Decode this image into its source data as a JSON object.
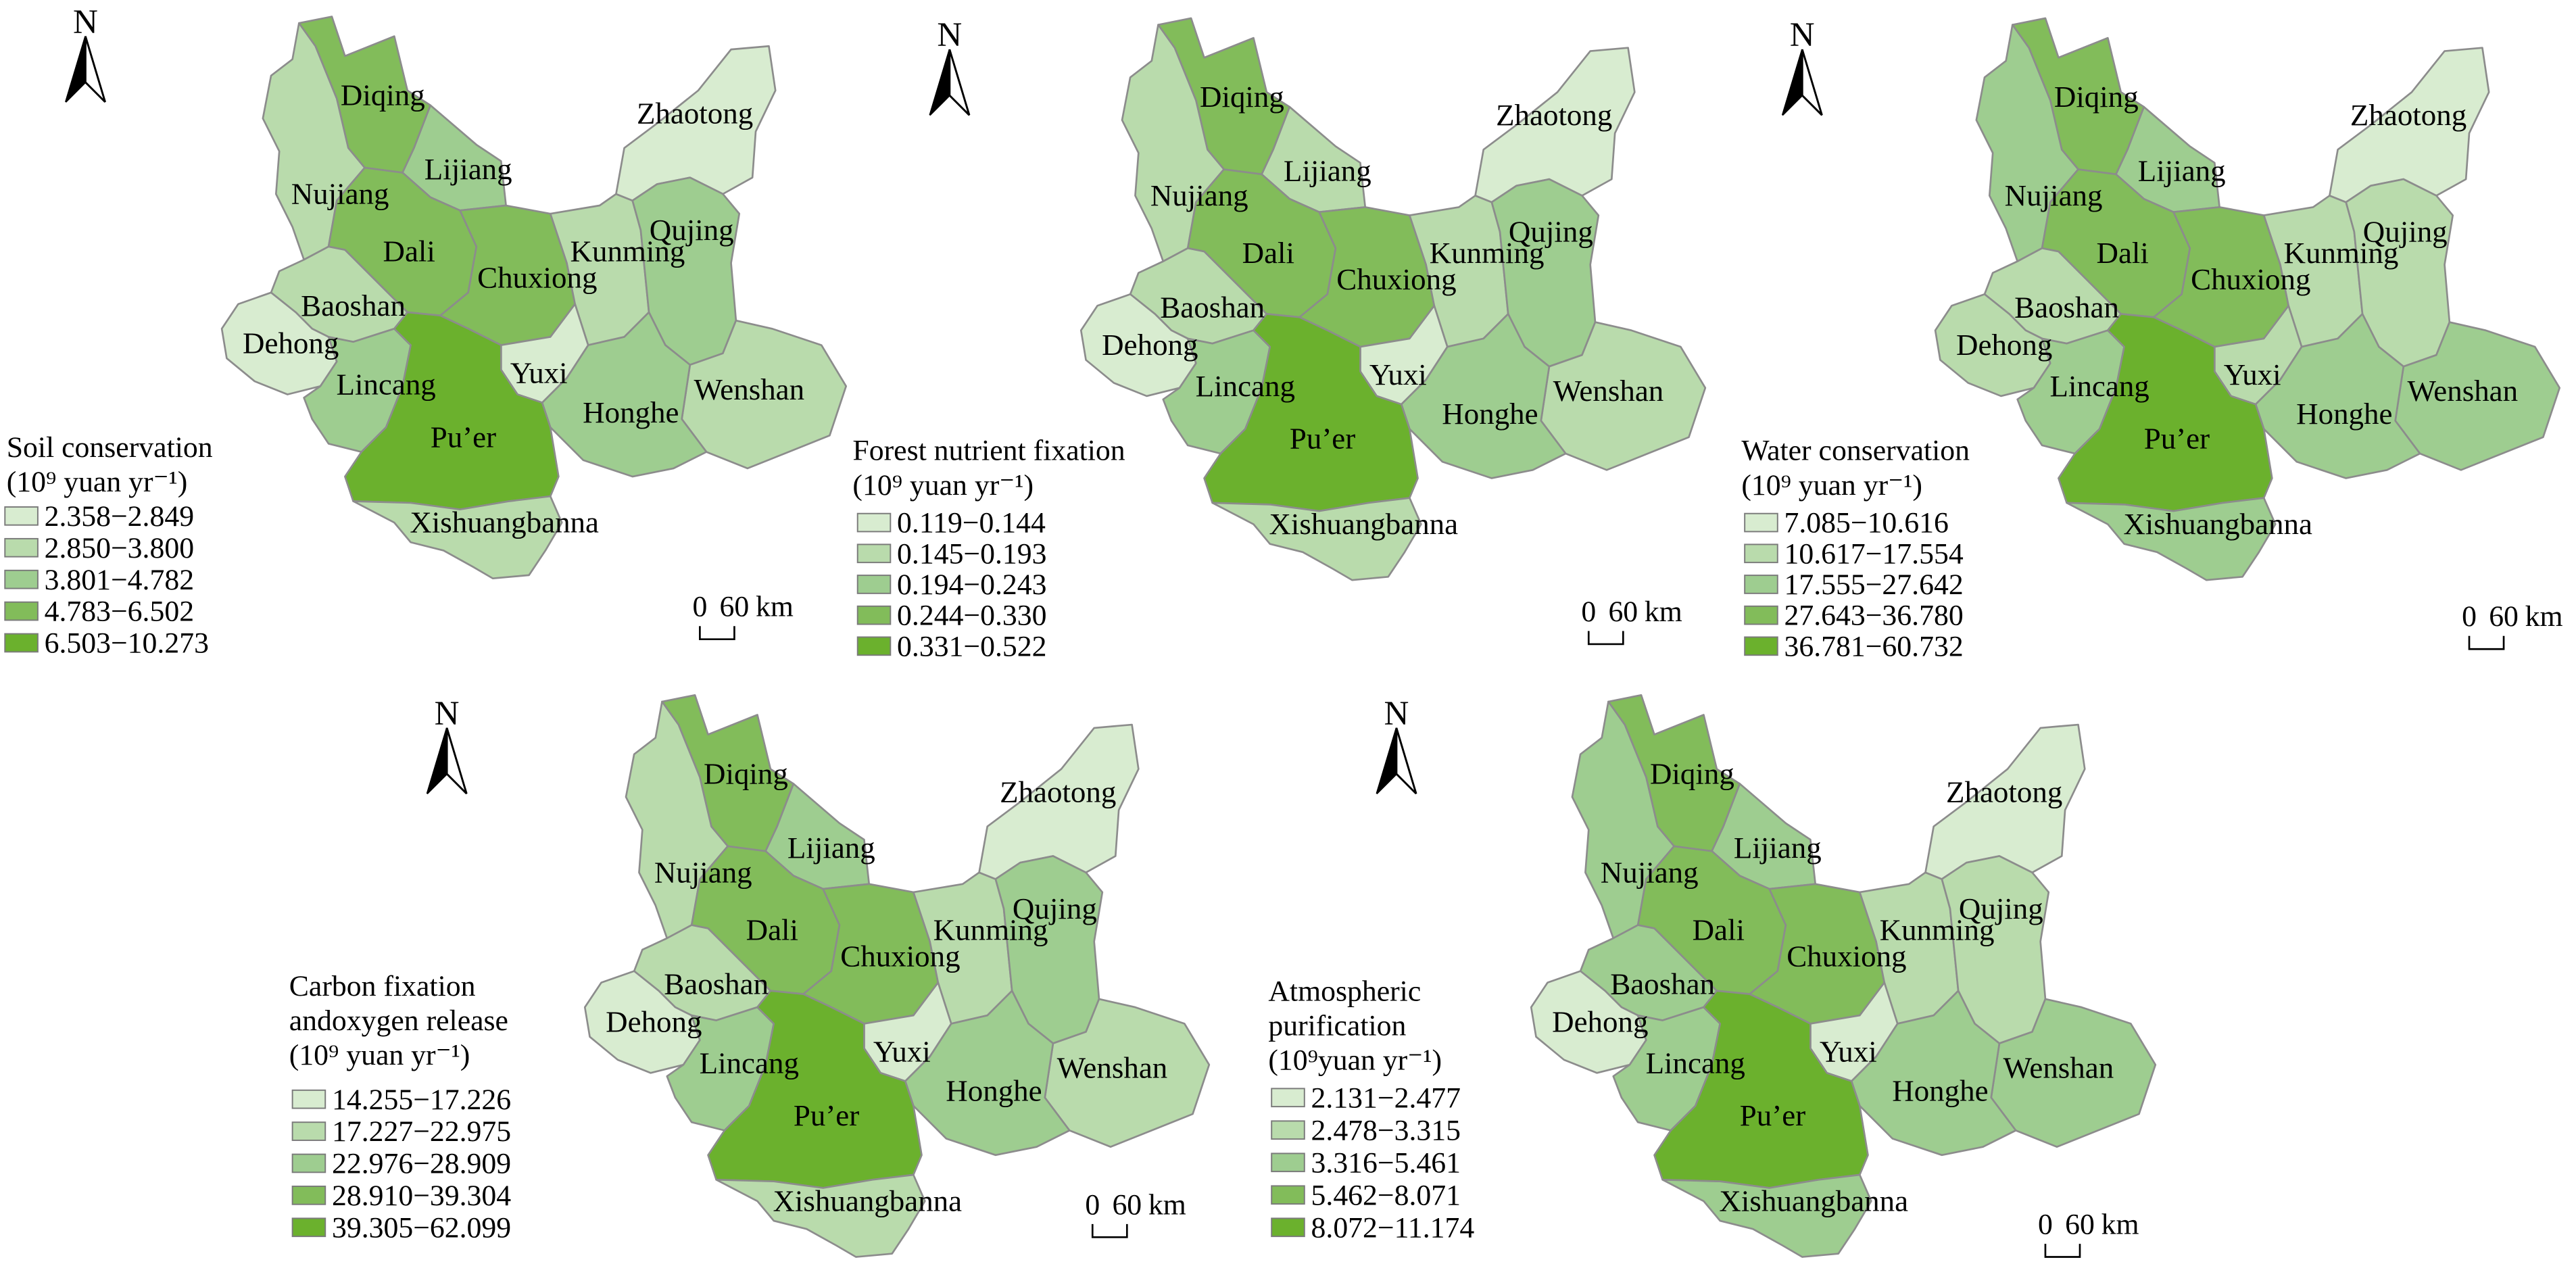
{
  "north_label": "N",
  "scale_bar": {
    "start": "0",
    "end": "60",
    "unit": "km"
  },
  "class_colors": [
    "#d8ecd0",
    "#b9dbac",
    "#9ecd90",
    "#82bc5a",
    "#6bb12d"
  ],
  "border_color": "#8c8c8c",
  "prefectures": [
    "Diqing",
    "Nujiang",
    "Lijiang",
    "Dali",
    "Chuxiong",
    "Kunming",
    "Zhaotong",
    "Qujing",
    "Wenshan",
    "Honghe",
    "Yuxi",
    "Baoshan",
    "Dehong",
    "Lincang",
    "Pu’er",
    "Xishuangbanna"
  ],
  "panels": [
    {
      "title_lines": [
        "Soil conservation"
      ],
      "unit": "(10⁹ yuan yr⁻¹)",
      "legend": [
        "2.358−2.849",
        "2.850−3.800",
        "3.801−4.782",
        "4.783−6.502",
        "6.503−10.273"
      ],
      "classes": {
        "Diqing": 4,
        "Nujiang": 2,
        "Lijiang": 3,
        "Dali": 4,
        "Chuxiong": 4,
        "Kunming": 2,
        "Zhaotong": 1,
        "Qujing": 3,
        "Wenshan": 2,
        "Honghe": 3,
        "Yuxi": 1,
        "Baoshan": 2,
        "Dehong": 1,
        "Lincang": 3,
        "Pu’er": 5,
        "Xishuangbanna": 2
      }
    },
    {
      "title_lines": [
        "Forest nutrient fixation"
      ],
      "unit": "(10⁹  yuan yr⁻¹)",
      "legend": [
        "0.119−0.144",
        "0.145−0.193",
        "0.194−0.243",
        "0.244−0.330",
        "0.331−0.522"
      ],
      "classes": {
        "Diqing": 4,
        "Nujiang": 2,
        "Lijiang": 2,
        "Dali": 4,
        "Chuxiong": 4,
        "Kunming": 2,
        "Zhaotong": 1,
        "Qujing": 3,
        "Wenshan": 2,
        "Honghe": 3,
        "Yuxi": 1,
        "Baoshan": 2,
        "Dehong": 1,
        "Lincang": 3,
        "Pu’er": 5,
        "Xishuangbanna": 2
      }
    },
    {
      "title_lines": [
        "Water conservation"
      ],
      "unit": "(10⁹ yuan yr⁻¹)",
      "legend": [
        "7.085−10.616",
        "10.617−17.554",
        "17.555−27.642",
        "27.643−36.780",
        "36.781−60.732"
      ],
      "classes": {
        "Diqing": 4,
        "Nujiang": 3,
        "Lijiang": 3,
        "Dali": 4,
        "Chuxiong": 4,
        "Kunming": 2,
        "Zhaotong": 1,
        "Qujing": 2,
        "Wenshan": 3,
        "Honghe": 3,
        "Yuxi": 2,
        "Baoshan": 2,
        "Dehong": 2,
        "Lincang": 3,
        "Pu’er": 5,
        "Xishuangbanna": 3
      }
    },
    {
      "title_lines": [
        "Carbon fixation",
        "andoxygen release"
      ],
      "unit": "(10⁹ yuan yr⁻¹)",
      "legend": [
        "14.255−17.226",
        "17.227−22.975",
        "22.976−28.909",
        "28.910−39.304",
        "39.305−62.099"
      ],
      "classes": {
        "Diqing": 4,
        "Nujiang": 2,
        "Lijiang": 3,
        "Dali": 4,
        "Chuxiong": 4,
        "Kunming": 2,
        "Zhaotong": 1,
        "Qujing": 3,
        "Wenshan": 2,
        "Honghe": 3,
        "Yuxi": 1,
        "Baoshan": 2,
        "Dehong": 1,
        "Lincang": 3,
        "Pu’er": 5,
        "Xishuangbanna": 2
      }
    },
    {
      "title_lines": [
        "Atmospheric",
        "purification"
      ],
      "unit": "(10⁹yuan yr⁻¹)",
      "legend": [
        "2.131−2.477",
        "2.478−3.315",
        "3.316−5.461",
        "5.462−8.071",
        "8.072−11.174"
      ],
      "classes": {
        "Diqing": 4,
        "Nujiang": 3,
        "Lijiang": 3,
        "Dali": 4,
        "Chuxiong": 4,
        "Kunming": 2,
        "Zhaotong": 1,
        "Qujing": 2,
        "Wenshan": 3,
        "Honghe": 3,
        "Yuxi": 1,
        "Baoshan": 3,
        "Dehong": 1,
        "Lincang": 3,
        "Pu’er": 5,
        "Xishuangbanna": 3
      }
    }
  ]
}
